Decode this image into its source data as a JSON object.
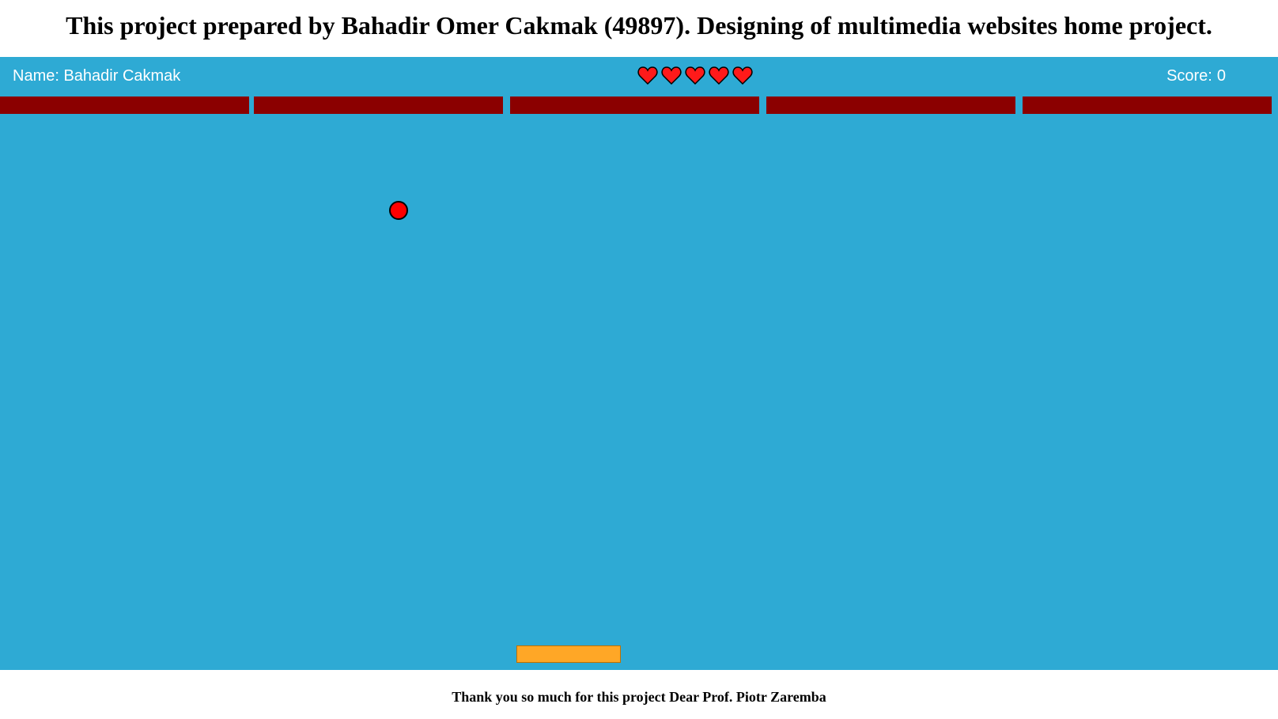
{
  "header": {
    "title": "This project prepared by Bahadir Omer Cakmak (49897). Designing of multimedia websites home project."
  },
  "hud": {
    "name_text": "Name: Bahadir Cakmak",
    "score_label": "Score:",
    "score_value": "0",
    "lives": 5,
    "life_icon": "heart-icon"
  },
  "game": {
    "brick_count": 5,
    "colors": {
      "background": "#2eaad4",
      "brick": "#8b0000",
      "ball": "#ff0000",
      "paddle": "#ffa726",
      "heart": "#ff1a1a"
    }
  },
  "footer": {
    "text": "Thank you so much for this project Dear Prof. Piotr Zaremba"
  }
}
